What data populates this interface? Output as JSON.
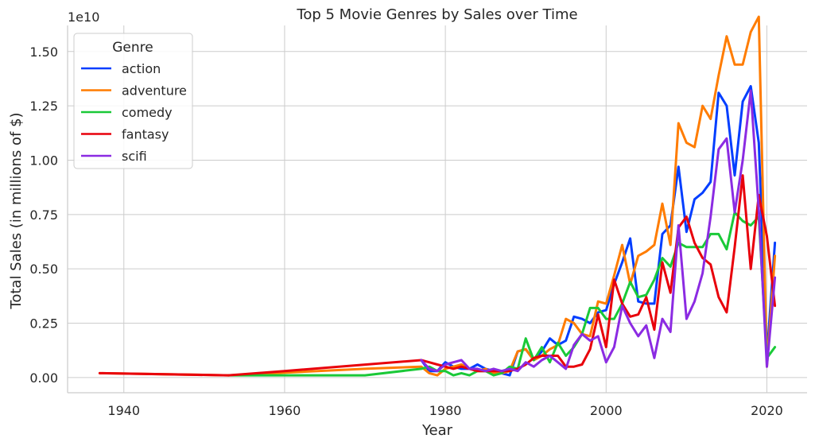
{
  "chart_data": {
    "type": "line",
    "title": "Top 5 Movie Genres by Sales over Time",
    "xlabel": "Year",
    "ylabel": "Total Sales (in millions of $)",
    "y_offset_label": "1e10",
    "xlim": [
      1933,
      2025
    ],
    "ylim": [
      -0.07,
      1.62
    ],
    "y_scale_note": "values in units of 1e10",
    "x_ticks": [
      1940,
      1960,
      1980,
      2000,
      2020
    ],
    "x_tick_labels": [
      "1940",
      "1960",
      "1980",
      "2000",
      "2020"
    ],
    "y_ticks": [
      0,
      0.25,
      0.5,
      0.75,
      1.0,
      1.25,
      1.5
    ],
    "y_tick_labels": [
      "0.00",
      "0.25",
      "0.50",
      "0.75",
      "1.00",
      "1.25",
      "1.50"
    ],
    "grid": true,
    "legend": {
      "title": "Genre",
      "placement": "top-left"
    },
    "series": [
      {
        "name": "action",
        "color": "#023eff",
        "x": [
          1977,
          1978,
          1979,
          1980,
          1981,
          1982,
          1983,
          1984,
          1985,
          1986,
          1987,
          1988,
          1989,
          1990,
          1991,
          1992,
          1993,
          1994,
          1995,
          1996,
          1997,
          1998,
          1999,
          2000,
          2001,
          2002,
          2003,
          2004,
          2005,
          2006,
          2007,
          2008,
          2009,
          2010,
          2011,
          2012,
          2013,
          2014,
          2015,
          2016,
          2017,
          2018,
          2019,
          2020,
          2021
        ],
        "y": [
          0.08,
          0.03,
          0.03,
          0.07,
          0.05,
          0.04,
          0.04,
          0.06,
          0.04,
          0.03,
          0.02,
          0.01,
          0.12,
          0.13,
          0.08,
          0.12,
          0.18,
          0.15,
          0.17,
          0.28,
          0.27,
          0.25,
          0.3,
          0.31,
          0.43,
          0.53,
          0.64,
          0.35,
          0.34,
          0.34,
          0.66,
          0.7,
          0.97,
          0.67,
          0.82,
          0.85,
          0.9,
          1.31,
          1.25,
          0.93,
          1.27,
          1.34,
          1.08,
          0.1,
          0.62
        ]
      },
      {
        "name": "adventure",
        "color": "#ff7c00",
        "x": [
          1937,
          1953,
          1970,
          1977,
          1978,
          1979,
          1980,
          1981,
          1982,
          1983,
          1984,
          1985,
          1986,
          1987,
          1988,
          1989,
          1990,
          1991,
          1992,
          1993,
          1994,
          1995,
          1996,
          1997,
          1998,
          1999,
          2000,
          2001,
          2002,
          2003,
          2004,
          2005,
          2006,
          2007,
          2008,
          2009,
          2010,
          2011,
          2012,
          2013,
          2014,
          2015,
          2016,
          2017,
          2018,
          2019,
          2020,
          2021
        ],
        "y": [
          0.02,
          0.01,
          0.04,
          0.05,
          0.02,
          0.01,
          0.04,
          0.05,
          0.06,
          0.04,
          0.03,
          0.04,
          0.02,
          0.02,
          0.03,
          0.12,
          0.13,
          0.08,
          0.1,
          0.13,
          0.15,
          0.27,
          0.25,
          0.2,
          0.19,
          0.35,
          0.34,
          0.47,
          0.61,
          0.43,
          0.56,
          0.58,
          0.61,
          0.8,
          0.61,
          1.17,
          1.08,
          1.06,
          1.25,
          1.19,
          1.39,
          1.57,
          1.44,
          1.44,
          1.59,
          1.66,
          0.05,
          0.56
        ]
      },
      {
        "name": "comedy",
        "color": "#1ac938",
        "x": [
          1953,
          1970,
          1977,
          1978,
          1979,
          1980,
          1981,
          1982,
          1983,
          1984,
          1985,
          1986,
          1987,
          1988,
          1989,
          1990,
          1991,
          1992,
          1993,
          1994,
          1995,
          1996,
          1997,
          1998,
          1999,
          2000,
          2001,
          2002,
          2003,
          2004,
          2005,
          2006,
          2007,
          2008,
          2009,
          2010,
          2011,
          2012,
          2013,
          2014,
          2015,
          2016,
          2017,
          2018,
          2019,
          2020,
          2021
        ],
        "y": [
          0.01,
          0.01,
          0.04,
          0.05,
          0.03,
          0.03,
          0.01,
          0.02,
          0.01,
          0.03,
          0.03,
          0.01,
          0.02,
          0.05,
          0.04,
          0.18,
          0.08,
          0.14,
          0.07,
          0.16,
          0.1,
          0.14,
          0.2,
          0.32,
          0.32,
          0.27,
          0.27,
          0.34,
          0.44,
          0.37,
          0.38,
          0.45,
          0.55,
          0.51,
          0.62,
          0.6,
          0.6,
          0.6,
          0.66,
          0.66,
          0.59,
          0.76,
          0.72,
          0.7,
          0.74,
          0.09,
          0.14
        ]
      },
      {
        "name": "fantasy",
        "color": "#e8000b",
        "x": [
          1937,
          1953,
          1960,
          1977,
          1978,
          1979,
          1980,
          1981,
          1982,
          1983,
          1984,
          1985,
          1986,
          1987,
          1988,
          1989,
          1990,
          1991,
          1992,
          1993,
          1994,
          1995,
          1996,
          1997,
          1998,
          1999,
          2000,
          2001,
          2002,
          2003,
          2004,
          2005,
          2006,
          2007,
          2008,
          2009,
          2010,
          2011,
          2012,
          2013,
          2014,
          2015,
          2016,
          2017,
          2018,
          2019,
          2020,
          2021
        ],
        "y": [
          0.02,
          0.01,
          0.03,
          0.08,
          0.07,
          0.06,
          0.05,
          0.04,
          0.05,
          0.04,
          0.03,
          0.03,
          0.03,
          0.03,
          0.03,
          0.04,
          0.06,
          0.09,
          0.1,
          0.1,
          0.1,
          0.05,
          0.05,
          0.06,
          0.13,
          0.29,
          0.14,
          0.45,
          0.34,
          0.28,
          0.29,
          0.37,
          0.22,
          0.53,
          0.39,
          0.69,
          0.74,
          0.62,
          0.55,
          0.52,
          0.37,
          0.3,
          0.6,
          0.93,
          0.5,
          0.84,
          0.65,
          0.33
        ]
      },
      {
        "name": "scifi",
        "color": "#8b2be2",
        "x": [
          1977,
          1978,
          1979,
          1980,
          1981,
          1982,
          1983,
          1984,
          1985,
          1986,
          1987,
          1988,
          1989,
          1990,
          1991,
          1992,
          1993,
          1994,
          1995,
          1996,
          1997,
          1998,
          1999,
          2000,
          2001,
          2002,
          2003,
          2004,
          2005,
          2006,
          2007,
          2008,
          2009,
          2010,
          2011,
          2012,
          2013,
          2014,
          2015,
          2016,
          2017,
          2018,
          2019,
          2020,
          2021
        ],
        "y": [
          0.08,
          0.04,
          0.03,
          0.06,
          0.07,
          0.08,
          0.04,
          0.04,
          0.03,
          0.04,
          0.03,
          0.04,
          0.03,
          0.07,
          0.05,
          0.08,
          0.1,
          0.07,
          0.04,
          0.15,
          0.2,
          0.17,
          0.19,
          0.07,
          0.14,
          0.33,
          0.25,
          0.19,
          0.24,
          0.09,
          0.27,
          0.21,
          0.7,
          0.27,
          0.35,
          0.48,
          0.74,
          1.05,
          1.1,
          0.76,
          1.0,
          1.32,
          0.77,
          0.05,
          0.46
        ]
      }
    ]
  }
}
